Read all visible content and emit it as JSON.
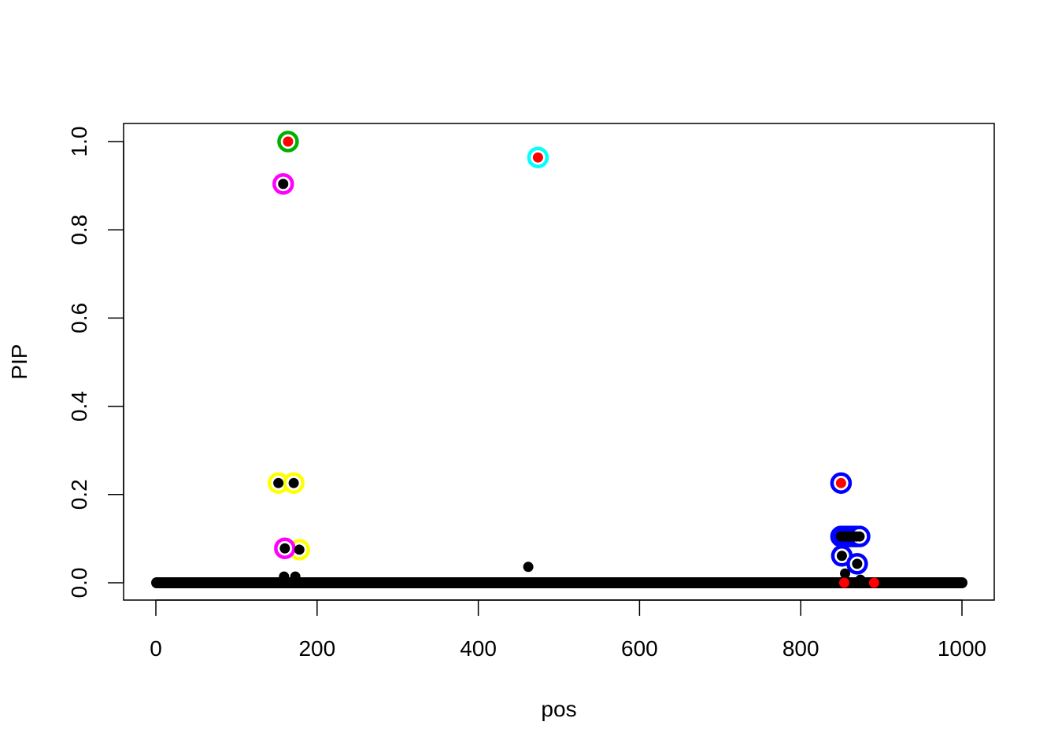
{
  "chart_data": {
    "type": "scatter",
    "title": "",
    "xlabel": "pos",
    "ylabel": "PIP",
    "xlim": [
      -20,
      1040
    ],
    "ylim": [
      -0.04,
      1.04
    ],
    "xticks": [
      0,
      200,
      400,
      600,
      800,
      1000
    ],
    "xtick_labels": [
      "0",
      "200",
      "400",
      "600",
      "800",
      "1000"
    ],
    "yticks": [
      0,
      0.2,
      0.4,
      0.6,
      0.8,
      1.0
    ],
    "ytick_labels": [
      "0.0",
      "0.2",
      "0.4",
      "0.6",
      "0.8",
      "1.0"
    ],
    "grid": false,
    "baseline": {
      "x_from": 1,
      "x_to": 1000,
      "y": 0,
      "color": "#000000"
    },
    "points": [
      {
        "x": 164,
        "y": 1.0,
        "color": "#ff0000",
        "ring": "#00b000"
      },
      {
        "x": 158,
        "y": 0.904,
        "color": "#000000",
        "ring": "#ff00ff"
      },
      {
        "x": 152,
        "y": 0.226,
        "color": "#000000",
        "ring": "#ffff00"
      },
      {
        "x": 171,
        "y": 0.226,
        "color": "#000000",
        "ring": "#ffff00"
      },
      {
        "x": 178,
        "y": 0.075,
        "color": "#000000",
        "ring": "#ffff00"
      },
      {
        "x": 160,
        "y": 0.078,
        "color": "#000000",
        "ring": "#ff00ff"
      },
      {
        "x": 159,
        "y": 0.014,
        "color": "#000000",
        "ring": null
      },
      {
        "x": 173,
        "y": 0.014,
        "color": "#000000",
        "ring": null
      },
      {
        "x": 474,
        "y": 0.964,
        "color": "#ff0000",
        "ring": "#00ffff"
      },
      {
        "x": 462,
        "y": 0.036,
        "color": "#000000",
        "ring": null
      },
      {
        "x": 850,
        "y": 0.226,
        "color": "#ff0000",
        "ring": "#0000ff"
      },
      {
        "x": 850,
        "y": 0.105,
        "color": "#000000",
        "ring": "#0000ff"
      },
      {
        "x": 853,
        "y": 0.105,
        "color": "#000000",
        "ring": "#0000ff"
      },
      {
        "x": 856,
        "y": 0.105,
        "color": "#000000",
        "ring": "#0000ff"
      },
      {
        "x": 859,
        "y": 0.105,
        "color": "#000000",
        "ring": "#0000ff"
      },
      {
        "x": 862,
        "y": 0.105,
        "color": "#000000",
        "ring": "#0000ff"
      },
      {
        "x": 866,
        "y": 0.105,
        "color": "#000000",
        "ring": "#0000ff"
      },
      {
        "x": 869,
        "y": 0.105,
        "color": "#000000",
        "ring": "#0000ff"
      },
      {
        "x": 873,
        "y": 0.105,
        "color": "#000000",
        "ring": "#0000ff"
      },
      {
        "x": 851,
        "y": 0.061,
        "color": "#000000",
        "ring": "#0000ff"
      },
      {
        "x": 870,
        "y": 0.043,
        "color": "#000000",
        "ring": "#0000ff"
      },
      {
        "x": 855,
        "y": 0.021,
        "color": "#000000",
        "ring": null
      },
      {
        "x": 874,
        "y": 0.007,
        "color": "#000000",
        "ring": null
      },
      {
        "x": 854,
        "y": 0.0,
        "color": "#ff0000",
        "ring": null
      },
      {
        "x": 891,
        "y": 0.0,
        "color": "#ff0000",
        "ring": null
      }
    ]
  }
}
